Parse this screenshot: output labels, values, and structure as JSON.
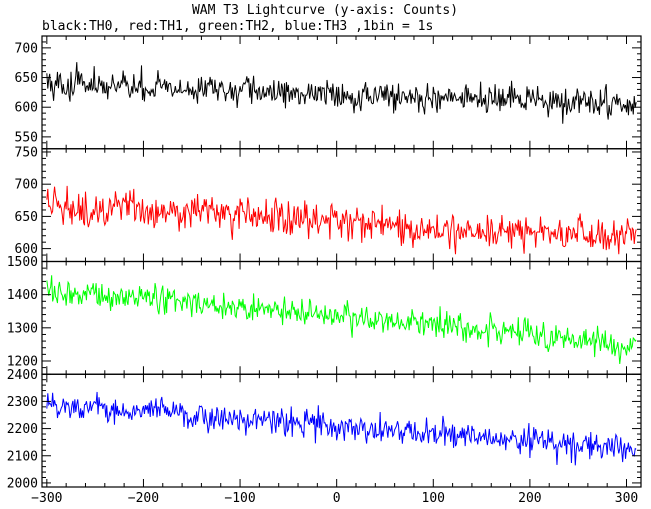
{
  "chart_data": {
    "type": "line",
    "title": "WAM T3 Lightcurve (y-axis: Counts)",
    "subtitle": "black:TH0, red:TH1, green:TH2, blue:TH3 ,1bin = 1s",
    "xlim": [
      -305,
      315
    ],
    "xticks": [
      -300,
      -200,
      -100,
      0,
      100,
      200,
      300
    ],
    "x_minor_step": 20,
    "grid": false,
    "panels": [
      {
        "key": "TH0",
        "color": "#000000",
        "ylim": [
          530,
          720
        ],
        "yticks": [
          550,
          600,
          650,
          700
        ],
        "y_minor_step": 10,
        "start_level": 640,
        "end_level": 605,
        "noise": 22,
        "values_x": [
          -300,
          -200,
          -100,
          0,
          100,
          200,
          300
        ],
        "values_y": [
          640,
          633,
          627,
          622,
          616,
          611,
          605
        ]
      },
      {
        "key": "TH1",
        "color": "#ff0000",
        "ylim": [
          580,
          755
        ],
        "yticks": [
          600,
          650,
          700,
          750
        ],
        "y_minor_step": 10,
        "start_level": 665,
        "end_level": 620,
        "noise": 25,
        "values_x": [
          -300,
          -200,
          -100,
          0,
          100,
          200,
          300
        ],
        "values_y": [
          665,
          660,
          652,
          645,
          630,
          625,
          620
        ]
      },
      {
        "key": "TH2",
        "color": "#00ff00",
        "ylim": [
          1160,
          1500
        ],
        "yticks": [
          1200,
          1300,
          1400,
          1500
        ],
        "y_minor_step": 20,
        "start_level": 1410,
        "end_level": 1240,
        "noise": 38,
        "values_x": [
          -300,
          -200,
          -100,
          0,
          100,
          200,
          300
        ],
        "values_y": [
          1410,
          1390,
          1360,
          1335,
          1310,
          1280,
          1240
        ]
      },
      {
        "key": "TH3",
        "color": "#0000ff",
        "ylim": [
          1985,
          2400
        ],
        "yticks": [
          2000,
          2100,
          2200,
          2300,
          2400
        ],
        "y_minor_step": 20,
        "start_level": 2285,
        "end_level": 2120,
        "noise": 45,
        "values_x": [
          -300,
          -200,
          -100,
          0,
          100,
          200,
          300
        ],
        "values_y": [
          2285,
          2270,
          2235,
          2205,
          2180,
          2150,
          2120
        ]
      }
    ]
  }
}
